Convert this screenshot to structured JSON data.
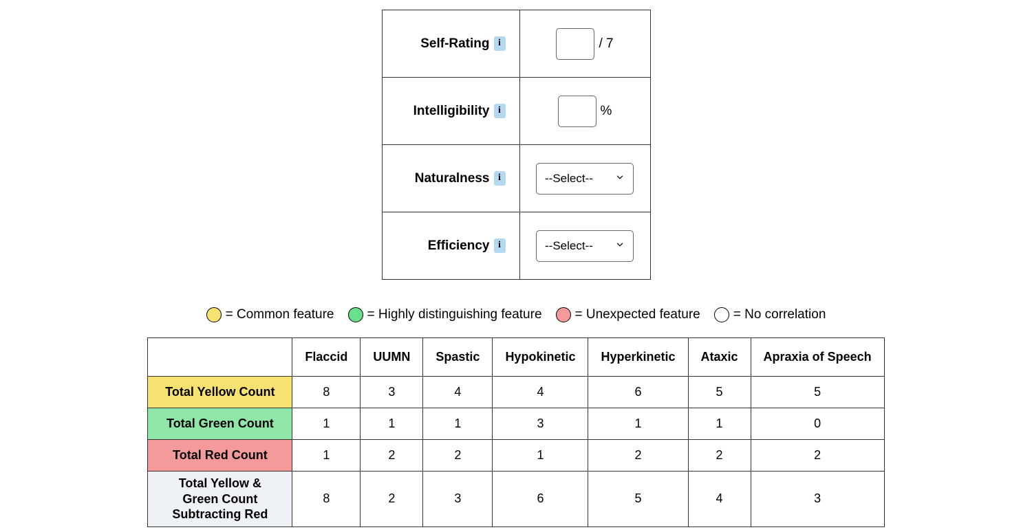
{
  "form": {
    "rows": [
      {
        "label": "Self-Rating",
        "type": "input",
        "value": "",
        "suffix": "/ 7"
      },
      {
        "label": "Intelligibility",
        "type": "input",
        "value": "",
        "suffix": "%"
      },
      {
        "label": "Naturalness",
        "type": "select",
        "selected": "--Select--"
      },
      {
        "label": "Efficiency",
        "type": "select",
        "selected": "--Select--"
      }
    ],
    "info_badge_text": "i",
    "info_badge_bg": "#b3d9f2"
  },
  "legend": {
    "items": [
      {
        "color": "#f7e171",
        "text": "= Common feature"
      },
      {
        "color": "#69e08b",
        "text": "= Highly distinguishing feature"
      },
      {
        "color": "#f49a9a",
        "text": "= Unexpected feature"
      },
      {
        "color": "#ffffff",
        "text": "= No correlation"
      }
    ],
    "swatch_border": "#000000"
  },
  "counts_table": {
    "columns": [
      "Flaccid",
      "UUMN",
      "Spastic",
      "Hypokinetic",
      "Hyperkinetic",
      "Ataxic",
      "Apraxia of Speech"
    ],
    "rows": [
      {
        "label": "Total Yellow Count",
        "bg": "#f7e171",
        "values": [
          8,
          3,
          4,
          4,
          6,
          5,
          5
        ]
      },
      {
        "label": "Total Green Count",
        "bg": "#8fe6a6",
        "values": [
          1,
          1,
          1,
          3,
          1,
          1,
          0
        ]
      },
      {
        "label": "Total Red Count",
        "bg": "#f49a9a",
        "values": [
          1,
          2,
          2,
          1,
          2,
          2,
          2
        ]
      },
      {
        "label": "Total Yellow & Green Count Subtracting Red",
        "bg": "#eef1f6",
        "values": [
          8,
          2,
          3,
          6,
          5,
          4,
          3
        ]
      }
    ],
    "border_color": "#333333",
    "font_size": 18
  }
}
